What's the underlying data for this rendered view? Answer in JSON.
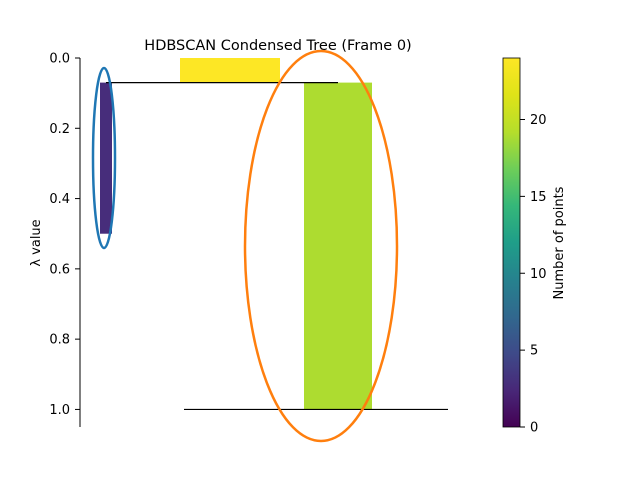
{
  "chart_data": {
    "type": "condensed-tree",
    "title": "HDBSCAN Condensed Tree (Frame 0)",
    "xlabel": "",
    "ylabel": "λ value",
    "ylim": [
      0.0,
      1.05
    ],
    "y_ticks": [
      0.0,
      0.2,
      0.4,
      0.6,
      0.8,
      1.0
    ],
    "y_tick_labels": [
      "0.0",
      "0.2",
      "0.4",
      "0.6",
      "0.8",
      "1.0"
    ],
    "y_inverted": true,
    "branches": [
      {
        "name": "root",
        "x_range": [
          0.25,
          0.5
        ],
        "lambda_birth": 0.0,
        "lambda_death": 0.07,
        "points": 24,
        "color": "#fde725"
      },
      {
        "name": "cluster-left",
        "x_range": [
          0.05,
          0.08
        ],
        "lambda_birth": 0.07,
        "lambda_death": 0.5,
        "points": 4,
        "color": "#472d7b"
      },
      {
        "name": "cluster-right",
        "x_range": [
          0.56,
          0.73
        ],
        "lambda_birth": 0.07,
        "lambda_death": 1.0,
        "points": 21,
        "color": "#addc30"
      }
    ],
    "split_lines": [
      {
        "name": "split-line-top",
        "lambda": 0.07,
        "x_range": [
          0.065,
          0.645
        ]
      },
      {
        "name": "split-line-bottom",
        "lambda": 1.0,
        "x_range": [
          0.26,
          0.92
        ]
      }
    ],
    "selected_clusters": [
      {
        "name": "selection-ellipse-left",
        "branch": "cluster-left",
        "color": "#1f77b4"
      },
      {
        "name": "selection-ellipse-right",
        "branch": "cluster-right",
        "color": "#ff7f0e"
      }
    ],
    "colorbar": {
      "label": "Number of points",
      "range": [
        0,
        24
      ],
      "ticks": [
        0,
        5,
        10,
        15,
        20
      ],
      "tick_labels": [
        "0",
        "5",
        "10",
        "15",
        "20"
      ],
      "colormap": "viridis"
    }
  }
}
